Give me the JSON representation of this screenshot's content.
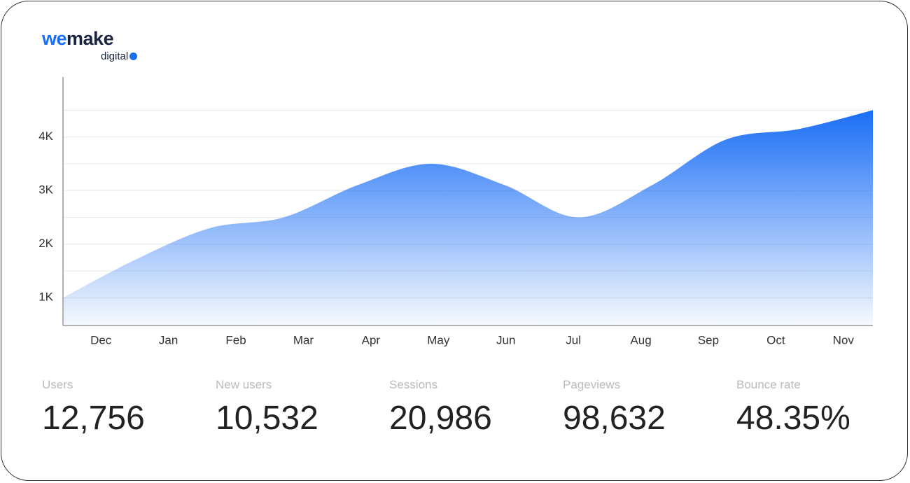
{
  "logo": {
    "word": "wemake",
    "word_accent": "we",
    "word_rest": "make",
    "sub": "digital"
  },
  "chart_data": {
    "type": "area",
    "color": "#1a6ef5",
    "categories": [
      "Dec",
      "Jan",
      "Feb",
      "Mar",
      "Apr",
      "May",
      "Jun",
      "Jul",
      "Aug",
      "Sep",
      "Oct",
      "Nov"
    ],
    "values": [
      1000,
      1720,
      2300,
      2500,
      3100,
      3500,
      3100,
      2500,
      3100,
      3950,
      4150,
      4500
    ],
    "ylim": [
      480,
      5120
    ],
    "yticks": [
      {
        "value": 1000,
        "label": "1K"
      },
      {
        "value": 2000,
        "label": "2K"
      },
      {
        "value": 3000,
        "label": "3K"
      },
      {
        "value": 4000,
        "label": "4K"
      }
    ],
    "grid_ticks": [
      1000,
      1500,
      2000,
      2500,
      3000,
      3500,
      4000,
      4500
    ],
    "grid": true
  },
  "stats": [
    {
      "label": "Users",
      "value": "12,756"
    },
    {
      "label": "New users",
      "value": "10,532"
    },
    {
      "label": "Sessions",
      "value": "20,986"
    },
    {
      "label": "Pageviews",
      "value": "98,632"
    },
    {
      "label": "Bounce rate",
      "value": "48.35%"
    }
  ]
}
